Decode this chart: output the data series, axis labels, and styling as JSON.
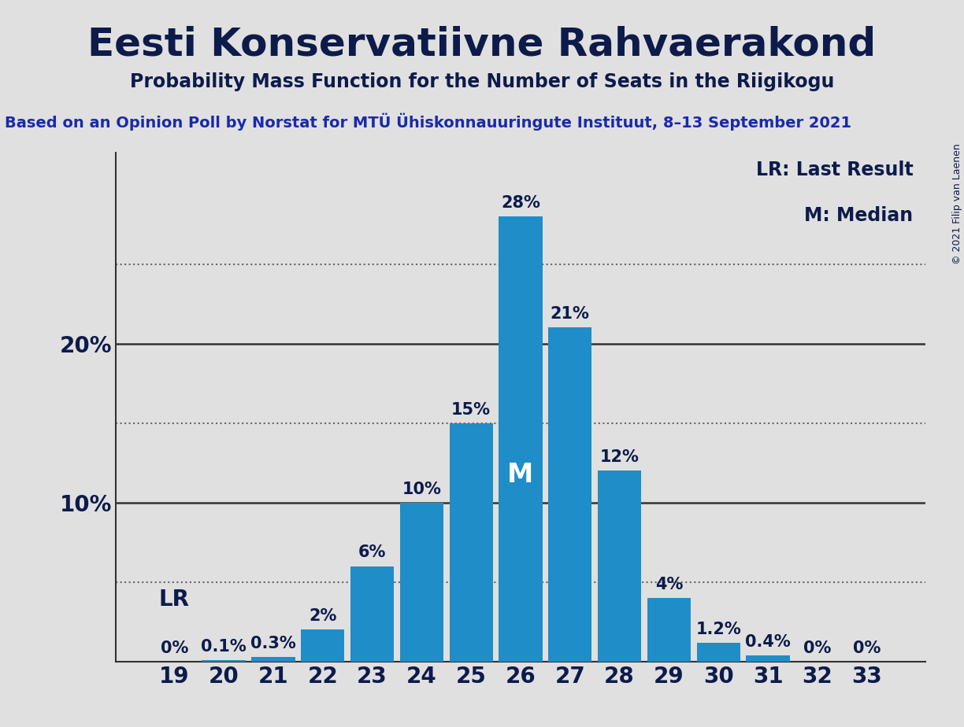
{
  "title": "Eesti Konservatiivne Rahvaerakond",
  "subtitle": "Probability Mass Function for the Number of Seats in the Riigikogu",
  "source_line": "Based on an Opinion Poll by Norstat for MTÜ Ühiskonnauuringute Instituut, 8–13 September 2021",
  "copyright": "© 2021 Filip van Laenen",
  "categories": [
    19,
    20,
    21,
    22,
    23,
    24,
    25,
    26,
    27,
    28,
    29,
    30,
    31,
    32,
    33
  ],
  "values": [
    0.0,
    0.1,
    0.3,
    2.0,
    6.0,
    10.0,
    15.0,
    28.0,
    21.0,
    12.0,
    4.0,
    1.2,
    0.4,
    0.0,
    0.0
  ],
  "bar_color": "#1f8dc8",
  "background_color": "#e0e0e0",
  "plot_bg_color": "#e0e0e0",
  "title_color": "#0d1b4b",
  "text_color": "#0d1b4b",
  "source_color": "#1a2aaa",
  "median_bar": 26,
  "lr_bar": 19,
  "lr_label": "LR",
  "median_label": "M",
  "legend_lr": "LR: Last Result",
  "legend_m": "M: Median",
  "ylim": [
    0,
    32
  ],
  "bar_labels": [
    "0%",
    "0.1%",
    "0.3%",
    "2%",
    "6%",
    "10%",
    "15%",
    "28%",
    "21%",
    "12%",
    "4%",
    "1.2%",
    "0.4%",
    "0%",
    "0%"
  ],
  "title_fontsize": 36,
  "subtitle_fontsize": 17,
  "source_fontsize": 14,
  "bar_label_fontsize": 15,
  "axis_tick_fontsize": 20,
  "legend_fontsize": 17,
  "lr_fontsize": 20,
  "median_fontsize": 24,
  "copyright_fontsize": 9
}
